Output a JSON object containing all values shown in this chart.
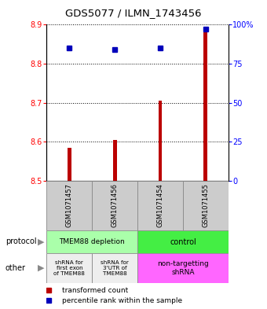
{
  "title": "GDS5077 / ILMN_1743456",
  "samples": [
    "GSM1071457",
    "GSM1071456",
    "GSM1071454",
    "GSM1071455"
  ],
  "transformed_counts": [
    8.585,
    8.605,
    8.705,
    8.885
  ],
  "percentile_ranks": [
    85,
    84,
    85,
    97
  ],
  "ylim": [
    8.5,
    8.9
  ],
  "yticks_left": [
    8.5,
    8.6,
    8.7,
    8.8,
    8.9
  ],
  "yticks_right": [
    0,
    25,
    50,
    75,
    100
  ],
  "yticks_right_labels": [
    "0",
    "25",
    "50",
    "75",
    "100%"
  ],
  "bar_color": "#bb0000",
  "dot_color": "#0000bb",
  "protocol_color_depletion": "#aaffaa",
  "protocol_color_control": "#44ee44",
  "other_color_shrna1": "#eeeeee",
  "other_color_shrna2": "#eeeeee",
  "other_color_nontarg": "#ff66ff",
  "sample_box_color": "#cccccc",
  "legend_bar_label": "transformed count",
  "legend_dot_label": "percentile rank within the sample",
  "bg_color": "#ffffff"
}
